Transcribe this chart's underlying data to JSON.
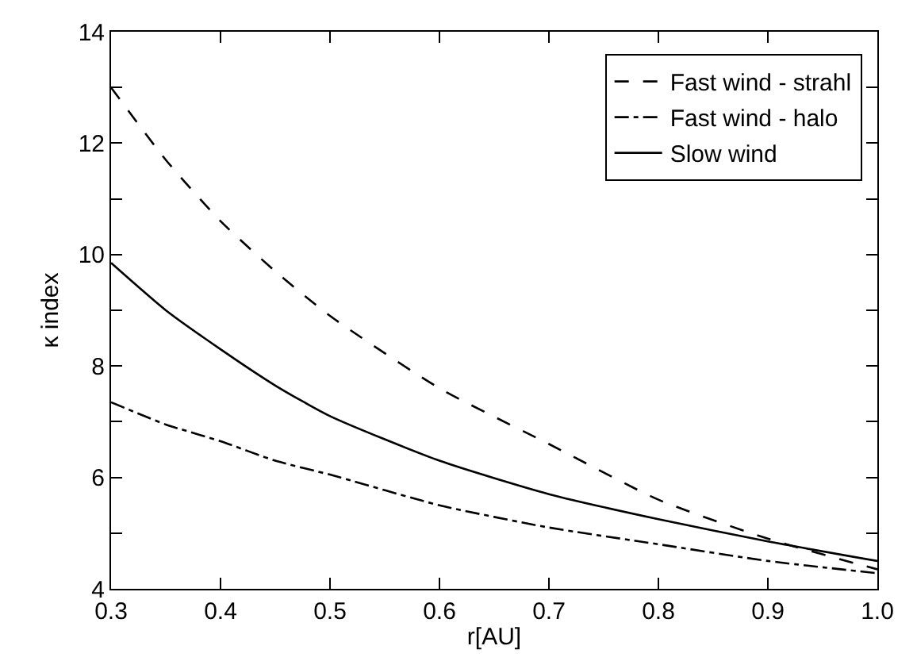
{
  "chart_data": {
    "type": "line",
    "xlabel": "r[AU]",
    "ylabel": "κ index",
    "x": [
      0.3,
      0.35,
      0.4,
      0.45,
      0.5,
      0.6,
      0.7,
      0.8,
      0.9,
      1.0
    ],
    "series": [
      {
        "name": "Fast wind - strahl",
        "color": "#000000",
        "line_style": "dashed",
        "values": [
          13.0,
          11.7,
          10.6,
          9.7,
          8.9,
          7.6,
          6.6,
          5.6,
          4.9,
          4.35
        ]
      },
      {
        "name": "Fast wind - halo",
        "color": "#000000",
        "line_style": "dashdot",
        "values": [
          7.35,
          6.95,
          6.65,
          6.3,
          6.05,
          5.5,
          5.1,
          4.8,
          4.5,
          4.28
        ]
      },
      {
        "name": "Slow wind",
        "color": "#000000",
        "line_style": "solid",
        "values": [
          9.85,
          9.0,
          8.3,
          7.65,
          7.1,
          6.3,
          5.7,
          5.25,
          4.85,
          4.5
        ]
      }
    ],
    "xlim": [
      0.3,
      1.0
    ],
    "xticks": [
      {
        "value": 0.3,
        "label": "0.3"
      },
      {
        "value": 0.4,
        "label": "0.4"
      },
      {
        "value": 0.5,
        "label": "0.5"
      },
      {
        "value": 0.6,
        "label": "0.6"
      },
      {
        "value": 0.7,
        "label": "0.7"
      },
      {
        "value": 0.8,
        "label": "0.8"
      },
      {
        "value": 0.9,
        "label": "0.9"
      },
      {
        "value": 1.0,
        "label": "1.0"
      }
    ],
    "ylim": [
      4,
      14
    ],
    "yticks": [
      4,
      {
        "value": 5,
        "label": null
      },
      6,
      {
        "value": 7,
        "label": null
      },
      8,
      {
        "value": 9,
        "label": null
      },
      10,
      {
        "value": 11,
        "label": null
      },
      12,
      {
        "value": 13,
        "label": null
      },
      14
    ],
    "grid": false,
    "legend": "top right",
    "marker": "none"
  }
}
